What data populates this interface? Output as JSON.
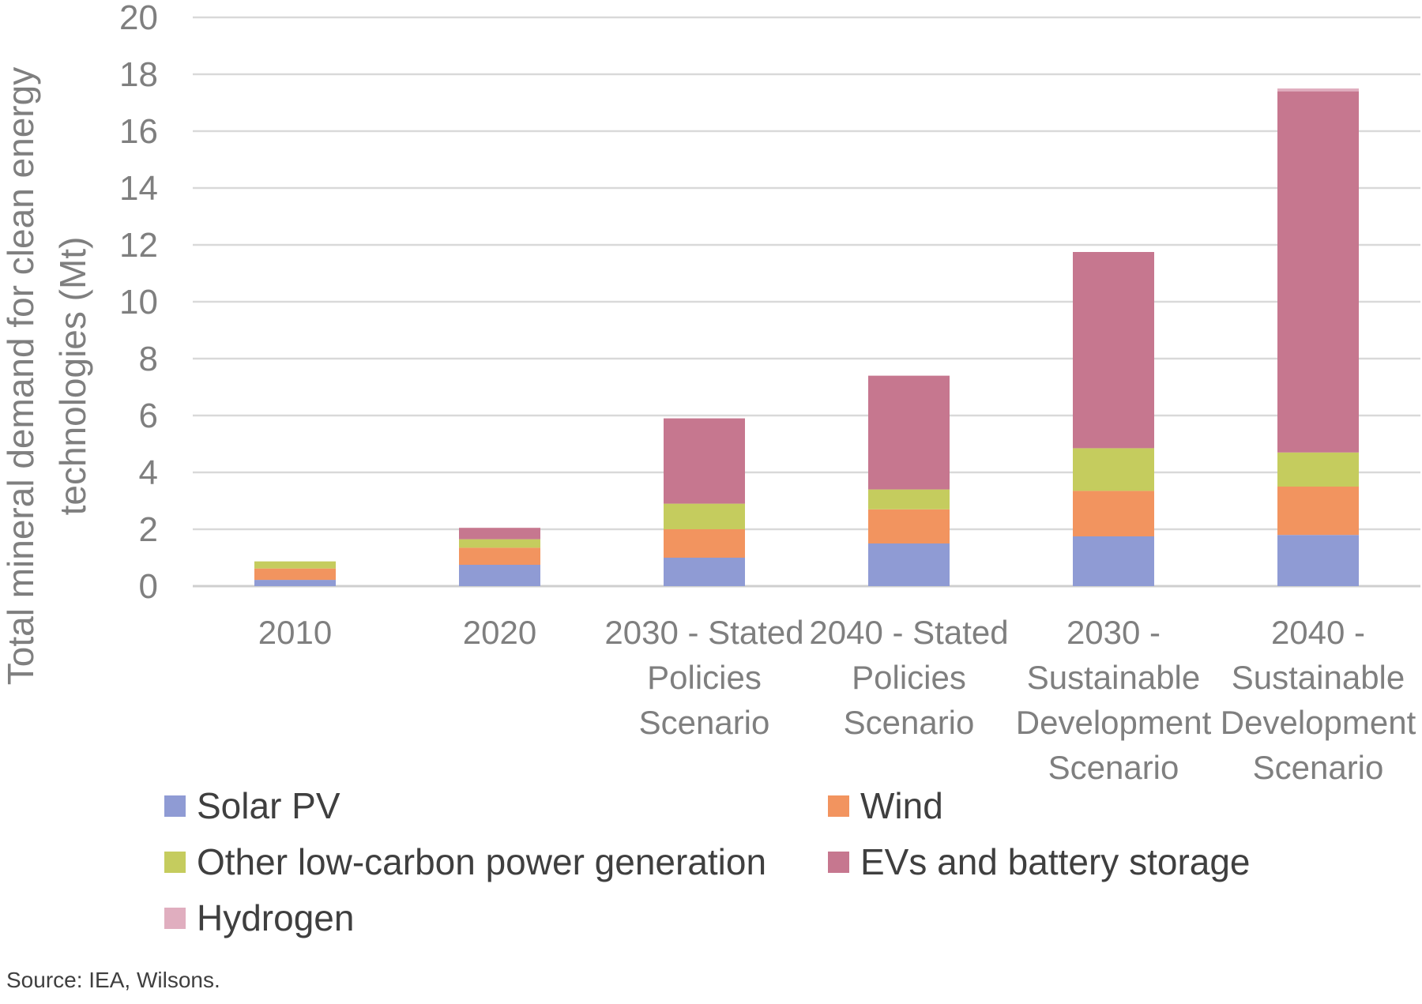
{
  "chart_data": {
    "type": "bar",
    "stacked": true,
    "ylabel": "Total mineral demand for clean energy technologies (Mt)",
    "ylim": [
      0,
      20
    ],
    "yticks": [
      0,
      2,
      4,
      6,
      8,
      10,
      12,
      14,
      16,
      18,
      20
    ],
    "grid": true,
    "legend_position": "bottom",
    "categories": [
      "2010",
      "2020",
      "2030 - Stated Policies Scenario",
      "2040 - Stated Policies Scenario",
      "2030 - Sustainable Development Scenario",
      "2040 - Sustainable Development Scenario"
    ],
    "category_lines": [
      [
        "2010"
      ],
      [
        "2020"
      ],
      [
        "2030 - Stated",
        "Policies",
        "Scenario"
      ],
      [
        "2040 - Stated",
        "Policies",
        "Scenario"
      ],
      [
        "2030 -",
        "Sustainable",
        "Development",
        "Scenario"
      ],
      [
        "2040 -",
        "Sustainable",
        "Development",
        "Scenario"
      ]
    ],
    "series": [
      {
        "name": "Solar PV",
        "color": "#8f9bd4",
        "values": [
          0.22,
          0.75,
          1.0,
          1.5,
          1.75,
          1.8
        ]
      },
      {
        "name": "Wind",
        "color": "#f2945f",
        "values": [
          0.4,
          0.6,
          1.0,
          1.2,
          1.6,
          1.7
        ]
      },
      {
        "name": "Other low-carbon power generation",
        "color": "#c5cc5e",
        "values": [
          0.25,
          0.3,
          0.9,
          0.7,
          1.5,
          1.2
        ]
      },
      {
        "name": "EVs and battery storage",
        "color": "#c6778f",
        "values": [
          0.0,
          0.4,
          3.0,
          4.0,
          6.9,
          12.7
        ]
      },
      {
        "name": "Hydrogen",
        "color": "#e0aebf",
        "values": [
          0.0,
          0.0,
          0.0,
          0.0,
          0.0,
          0.1
        ]
      }
    ]
  },
  "source": "Source: IEA, Wilsons."
}
